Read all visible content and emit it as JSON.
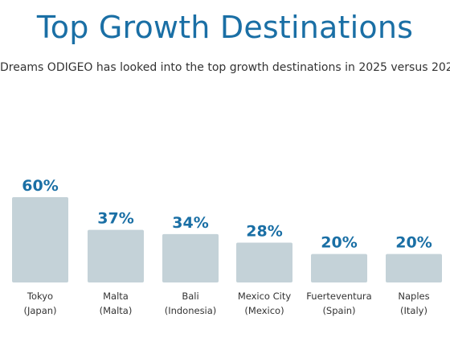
{
  "header": {
    "title": "Top Growth Destinations",
    "subtitle": "Dreams ODIGEO has looked into the top growth destinations in 2025 versus 202"
  },
  "colors": {
    "title": "#1a6fa5",
    "bar": "#c4d2d8",
    "value_label": "#1a6fa5",
    "text": "#333333"
  },
  "chart_data": {
    "type": "bar",
    "categories": [
      [
        "Tokyo",
        "(Japan)"
      ],
      [
        "Malta",
        "(Malta)"
      ],
      [
        "Bali",
        "(Indonesia)"
      ],
      [
        "Mexico City",
        "(Mexico)"
      ],
      [
        "Fuerteventura",
        "(Spain)"
      ],
      [
        "Naples",
        "(Italy)"
      ]
    ],
    "values": [
      60,
      37,
      34,
      28,
      20,
      20
    ],
    "value_labels": [
      "60%",
      "37%",
      "34%",
      "28%",
      "20%",
      "20%"
    ],
    "ylim": [
      0,
      60
    ],
    "grid": false
  }
}
